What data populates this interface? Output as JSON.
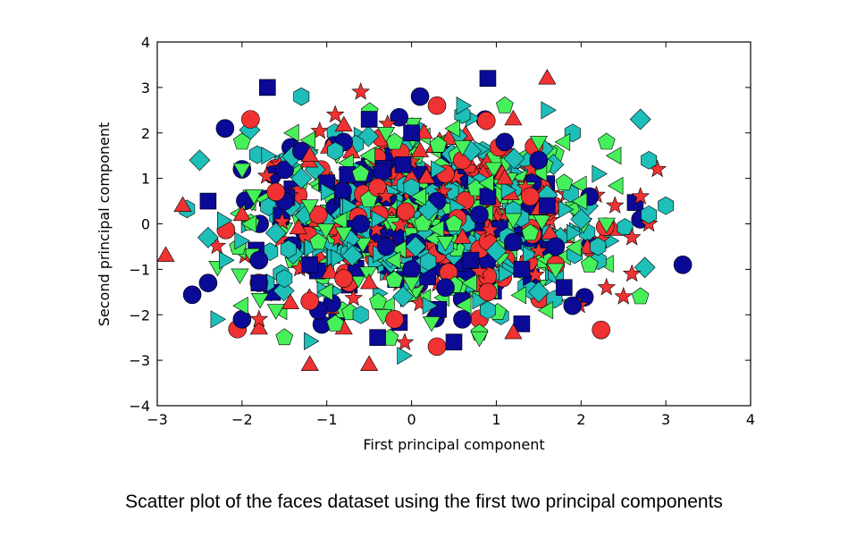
{
  "caption": "Scatter plot of the faces dataset using the first two principal components",
  "chart_data": {
    "type": "scatter",
    "title": "",
    "xlabel": "First principal component",
    "ylabel": "Second principal component",
    "xlim": [
      -3,
      4
    ],
    "ylim": [
      -4,
      4
    ],
    "xticks": [
      -3,
      -2,
      -1,
      0,
      1,
      2,
      3,
      4
    ],
    "xtick_labels": [
      "−3",
      "−2",
      "−1",
      "0",
      "1",
      "2",
      "3",
      "4"
    ],
    "yticks": [
      -4,
      -3,
      -2,
      -1,
      0,
      1,
      2,
      3,
      4
    ],
    "ytick_labels": [
      "−4",
      "−3",
      "−2",
      "−1",
      "0",
      "1",
      "2",
      "3",
      "4"
    ],
    "grid": false,
    "legend": "none",
    "colors": {
      "blue": "#0a0a96",
      "red": "#f03232",
      "cyan": "#1ebeb9",
      "green": "#46f05a"
    },
    "series": [
      {
        "marker": "circle",
        "color": "blue",
        "points": [
          [
            -2.2,
            2.1
          ],
          [
            0.1,
            2.8
          ],
          [
            -0.8,
            1.8
          ],
          [
            -2.0,
            1.2
          ],
          [
            -1.3,
            1.6
          ],
          [
            0.3,
            0.5
          ],
          [
            1.5,
            1.4
          ],
          [
            2.1,
            0.6
          ],
          [
            2.7,
            0.1
          ],
          [
            3.2,
            -0.9
          ],
          [
            -2.4,
            -1.3
          ],
          [
            -2.0,
            -2.1
          ],
          [
            -1.1,
            -1.9
          ],
          [
            0.6,
            -2.1
          ],
          [
            0.0,
            -1.0
          ],
          [
            1.2,
            -0.4
          ],
          [
            1.9,
            -1.8
          ],
          [
            -0.3,
            -0.5
          ],
          [
            -1.5,
            0.5
          ],
          [
            0.8,
            0.2
          ],
          [
            1.1,
            1.8
          ],
          [
            -0.6,
            0.0
          ],
          [
            0.4,
            -1.4
          ],
          [
            1.7,
            -0.5
          ],
          [
            -1.8,
            -0.8
          ]
        ]
      },
      {
        "marker": "square",
        "color": "blue",
        "points": [
          [
            -1.7,
            3.0
          ],
          [
            0.9,
            3.2
          ],
          [
            -0.5,
            2.3
          ],
          [
            -2.4,
            0.5
          ],
          [
            -1.8,
            -1.3
          ],
          [
            -0.4,
            -2.5
          ],
          [
            0.5,
            -2.6
          ],
          [
            1.3,
            -2.2
          ],
          [
            1.8,
            -1.4
          ],
          [
            1.6,
            0.4
          ],
          [
            0.9,
            0.6
          ],
          [
            -0.1,
            1.3
          ],
          [
            -1.0,
            0.9
          ],
          [
            0.7,
            -0.8
          ],
          [
            0.0,
            2.0
          ],
          [
            -1.2,
            -0.9
          ],
          [
            1.3,
            -1.0
          ]
        ]
      },
      {
        "marker": "triangle-up",
        "color": "red",
        "points": [
          [
            1.6,
            3.2
          ],
          [
            -2.7,
            0.4
          ],
          [
            -2.9,
            -0.7
          ],
          [
            -1.2,
            -3.1
          ],
          [
            -0.5,
            -3.1
          ],
          [
            1.2,
            -2.4
          ],
          [
            -1.8,
            -2.3
          ],
          [
            -0.8,
            -2.3
          ],
          [
            -1.2,
            1.5
          ],
          [
            0.1,
            1.6
          ],
          [
            0.6,
            -0.3
          ],
          [
            1.1,
            1.0
          ],
          [
            -2.0,
            0.2
          ],
          [
            1.2,
            2.3
          ],
          [
            -0.5,
            -1.3
          ]
        ]
      },
      {
        "marker": "circle",
        "color": "red",
        "points": [
          [
            -1.9,
            2.3
          ],
          [
            0.3,
            2.6
          ],
          [
            -1.2,
            -1.7
          ],
          [
            0.3,
            -2.7
          ],
          [
            -0.4,
            0.8
          ],
          [
            0.9,
            -1.5
          ],
          [
            1.7,
            -0.9
          ],
          [
            -0.8,
            -1.2
          ],
          [
            -1.6,
            0.7
          ],
          [
            0.4,
            1.1
          ],
          [
            1.4,
            0.6
          ],
          [
            -0.2,
            -2.1
          ],
          [
            0.6,
            1.4
          ],
          [
            -1.1,
            0.2
          ]
        ]
      },
      {
        "marker": "star",
        "color": "red",
        "points": [
          [
            -0.6,
            2.9
          ],
          [
            -0.9,
            2.4
          ],
          [
            2.7,
            0.6
          ],
          [
            2.9,
            1.2
          ],
          [
            2.8,
            0.0
          ],
          [
            2.6,
            -0.3
          ],
          [
            2.3,
            -1.4
          ],
          [
            2.5,
            -1.6
          ],
          [
            2.6,
            -1.1
          ],
          [
            -1.8,
            -2.1
          ],
          [
            2.4,
            0.4
          ],
          [
            1.5,
            -0.6
          ],
          [
            -0.3,
            0.6
          ]
        ]
      },
      {
        "marker": "diamond",
        "color": "cyan",
        "points": [
          [
            2.7,
            2.3
          ],
          [
            -2.5,
            1.4
          ],
          [
            -2.4,
            -0.3
          ],
          [
            -1.3,
            1.0
          ],
          [
            0.2,
            0.3
          ],
          [
            1.0,
            -0.6
          ],
          [
            2.0,
            0.1
          ],
          [
            -0.7,
            -0.7
          ],
          [
            0.7,
            1.6
          ],
          [
            -1.6,
            -0.2
          ],
          [
            1.5,
            -1.5
          ],
          [
            -0.1,
            -1.6
          ]
        ]
      },
      {
        "marker": "hexagon",
        "color": "cyan",
        "points": [
          [
            -1.3,
            2.8
          ],
          [
            0.6,
            2.4
          ],
          [
            1.9,
            2.0
          ],
          [
            2.8,
            1.4
          ],
          [
            3.0,
            0.4
          ],
          [
            2.8,
            0.2
          ],
          [
            -0.6,
            -2.0
          ],
          [
            0.9,
            -1.9
          ],
          [
            -1.5,
            -1.2
          ],
          [
            0.0,
            0.8
          ],
          [
            1.2,
            0.3
          ],
          [
            -0.9,
            1.6
          ],
          [
            0.4,
            -0.5
          ],
          [
            2.2,
            -0.5
          ]
        ]
      },
      {
        "marker": "triangle-right",
        "color": "cyan",
        "points": [
          [
            0.6,
            2.6
          ],
          [
            1.6,
            2.5
          ],
          [
            -2.2,
            -0.8
          ],
          [
            -2.3,
            -2.1
          ],
          [
            -0.1,
            -2.9
          ],
          [
            1.9,
            -0.2
          ],
          [
            -1.0,
            0.7
          ],
          [
            0.3,
            1.2
          ],
          [
            -1.7,
            1.5
          ],
          [
            1.1,
            -1.1
          ],
          [
            0.2,
            -1.8
          ],
          [
            -0.4,
            0.1
          ],
          [
            2.2,
            1.1
          ]
        ]
      },
      {
        "marker": "pentagon",
        "color": "green",
        "points": [
          [
            2.3,
            1.8
          ],
          [
            -1.5,
            -2.5
          ],
          [
            -0.9,
            -2.2
          ],
          [
            1.1,
            2.6
          ],
          [
            2.7,
            -1.6
          ],
          [
            -2.0,
            1.8
          ],
          [
            0.8,
            -2.4
          ],
          [
            1.8,
            0.9
          ],
          [
            -0.2,
            1.8
          ],
          [
            -1.1,
            -0.4
          ],
          [
            0.5,
            0.0
          ],
          [
            1.4,
            -0.2
          ],
          [
            -0.6,
            1.1
          ],
          [
            2.1,
            -0.9
          ]
        ]
      },
      {
        "marker": "triangle-left",
        "color": "green",
        "points": [
          [
            -2.0,
            -1.8
          ],
          [
            0.5,
            2.1
          ],
          [
            -1.4,
            2.0
          ],
          [
            1.8,
            1.8
          ],
          [
            -0.2,
            -0.8
          ],
          [
            0.9,
            0.9
          ],
          [
            -1.0,
            -1.5
          ],
          [
            1.6,
            -1.9
          ],
          [
            -1.9,
            0.0
          ],
          [
            0.1,
            0.6
          ],
          [
            2.0,
            0.5
          ],
          [
            -0.5,
            1.5
          ],
          [
            0.7,
            -1.3
          ]
        ]
      },
      {
        "marker": "triangle-down",
        "color": "green",
        "points": [
          [
            0.8,
            -2.5
          ],
          [
            1.5,
            1.8
          ],
          [
            -2.0,
            1.2
          ],
          [
            -0.3,
            2.0
          ],
          [
            0.4,
            -0.4
          ],
          [
            -1.2,
            0.4
          ],
          [
            1.2,
            0.1
          ],
          [
            -0.8,
            -0.2
          ],
          [
            0.0,
            -1.3
          ],
          [
            1.7,
            -1.0
          ],
          [
            -1.6,
            -1.9
          ],
          [
            0.6,
            1.7
          ],
          [
            2.3,
            0.0
          ]
        ]
      }
    ]
  }
}
